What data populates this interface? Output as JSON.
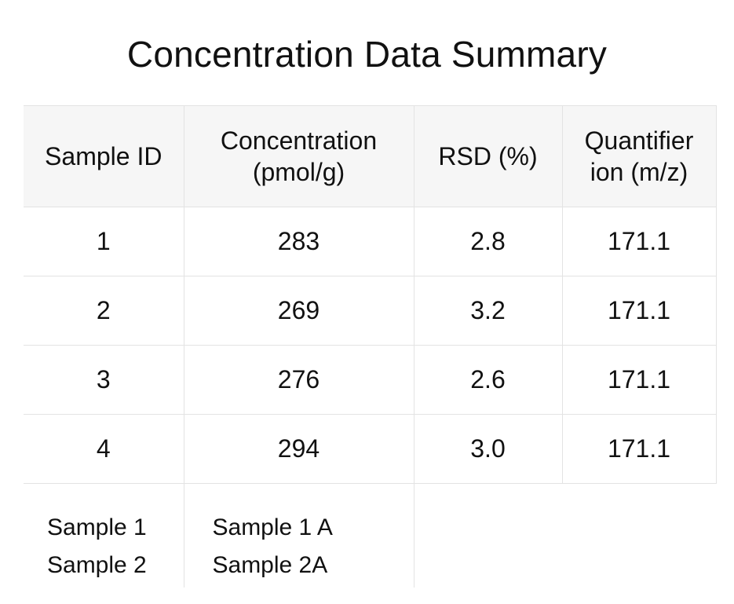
{
  "title": "Concentration Data Summary",
  "table": {
    "headers": [
      [
        "Sample ID"
      ],
      [
        "Concentration",
        "(pmol/g)"
      ],
      [
        "RSD (%)"
      ],
      [
        "Quantifier",
        "ion (m/z)"
      ]
    ],
    "rows": [
      [
        "1",
        "283",
        "2.8",
        "171.1"
      ],
      [
        "2",
        "269",
        "3.2",
        "171.1"
      ],
      [
        "3",
        "276",
        "2.6",
        "171.1"
      ],
      [
        "4",
        "294",
        "3.0",
        "171.1"
      ]
    ],
    "footer": {
      "col1": [
        "Sample 1",
        "Sample 2"
      ],
      "col2": [
        "Sample 1 A",
        "Sample 2A"
      ]
    }
  }
}
